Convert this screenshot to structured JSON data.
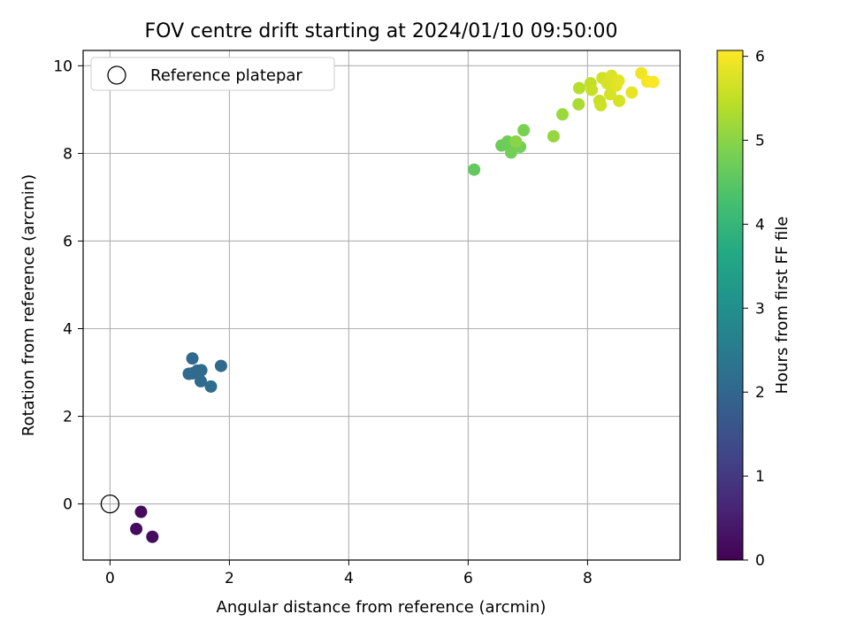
{
  "chart_data": {
    "type": "scatter",
    "title": "FOV centre drift starting at 2024/01/10 09:50:00",
    "xlabel": "Angular distance from reference (arcmin)",
    "ylabel": "Rotation from reference (arcmin)",
    "xlim": [
      -0.45,
      9.55
    ],
    "ylim": [
      -1.28,
      10.35
    ],
    "xticks": [
      0,
      2,
      4,
      6,
      8
    ],
    "yticks": [
      0,
      2,
      4,
      6,
      8,
      10
    ],
    "grid": true,
    "legend": {
      "placement": "top-left",
      "entries": [
        "Reference platepar"
      ]
    },
    "reference_point": {
      "x": 0,
      "y": 0
    },
    "colorbar": {
      "label": "Hours from first FF file",
      "range": [
        0,
        6.07
      ],
      "ticks": [
        0,
        1,
        2,
        3,
        4,
        5,
        6
      ],
      "colormap": "viridis"
    },
    "points": [
      {
        "x": 0.52,
        "y": -0.18,
        "c": 0.15
      },
      {
        "x": 0.44,
        "y": -0.57,
        "c": 0.18
      },
      {
        "x": 0.71,
        "y": -0.75,
        "c": 0.2
      },
      {
        "x": 1.38,
        "y": 3.32,
        "c": 2.05
      },
      {
        "x": 1.86,
        "y": 3.15,
        "c": 2.08
      },
      {
        "x": 1.46,
        "y": 3.04,
        "c": 2.1
      },
      {
        "x": 1.53,
        "y": 3.05,
        "c": 2.12
      },
      {
        "x": 1.32,
        "y": 2.97,
        "c": 2.1
      },
      {
        "x": 1.38,
        "y": 2.98,
        "c": 2.1
      },
      {
        "x": 1.52,
        "y": 2.8,
        "c": 2.12
      },
      {
        "x": 1.69,
        "y": 2.68,
        "c": 2.15
      },
      {
        "x": 6.1,
        "y": 7.63,
        "c": 4.6
      },
      {
        "x": 6.56,
        "y": 8.18,
        "c": 4.7
      },
      {
        "x": 6.66,
        "y": 8.27,
        "c": 4.72
      },
      {
        "x": 6.72,
        "y": 8.02,
        "c": 4.75
      },
      {
        "x": 6.87,
        "y": 8.15,
        "c": 4.78
      },
      {
        "x": 6.8,
        "y": 8.27,
        "c": 5.0
      },
      {
        "x": 6.93,
        "y": 8.53,
        "c": 4.85
      },
      {
        "x": 7.43,
        "y": 8.39,
        "c": 5.1
      },
      {
        "x": 7.58,
        "y": 8.89,
        "c": 5.15
      },
      {
        "x": 7.85,
        "y": 9.12,
        "c": 5.3
      },
      {
        "x": 7.86,
        "y": 9.49,
        "c": 5.4
      },
      {
        "x": 8.05,
        "y": 9.6,
        "c": 5.5
      },
      {
        "x": 8.07,
        "y": 9.45,
        "c": 5.55
      },
      {
        "x": 8.2,
        "y": 9.2,
        "c": 5.55
      },
      {
        "x": 8.22,
        "y": 9.1,
        "c": 5.6
      },
      {
        "x": 8.25,
        "y": 9.72,
        "c": 5.65
      },
      {
        "x": 8.33,
        "y": 9.6,
        "c": 5.7
      },
      {
        "x": 8.38,
        "y": 9.35,
        "c": 5.7
      },
      {
        "x": 8.4,
        "y": 9.77,
        "c": 5.75
      },
      {
        "x": 8.48,
        "y": 9.55,
        "c": 5.8
      },
      {
        "x": 8.52,
        "y": 9.66,
        "c": 5.82
      },
      {
        "x": 8.53,
        "y": 9.2,
        "c": 5.7
      },
      {
        "x": 8.74,
        "y": 9.39,
        "c": 5.85
      },
      {
        "x": 8.9,
        "y": 9.83,
        "c": 5.95
      },
      {
        "x": 9.0,
        "y": 9.64,
        "c": 6.0
      },
      {
        "x": 9.1,
        "y": 9.63,
        "c": 6.05
      }
    ]
  }
}
